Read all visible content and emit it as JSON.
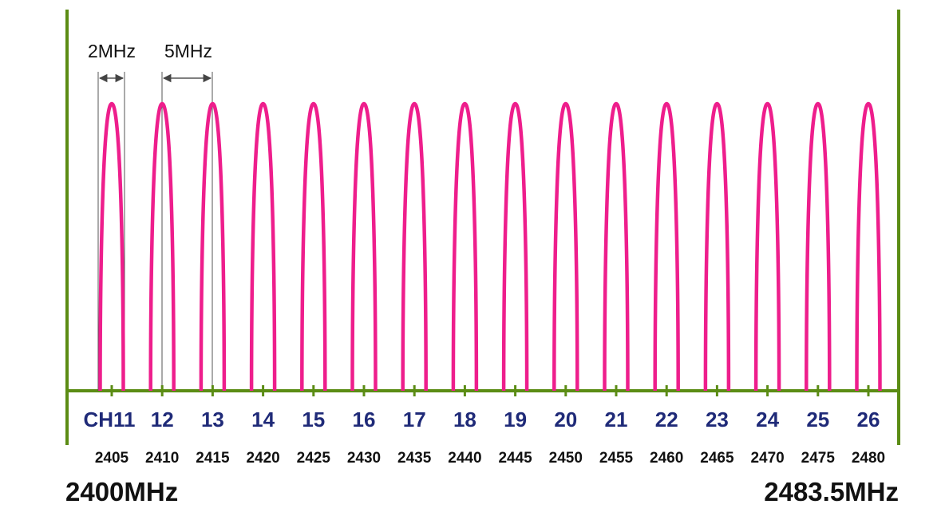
{
  "band": {
    "start_label": "2400MHz",
    "end_label": "2483.5MHz",
    "start_mhz": 2400,
    "end_mhz": 2483.5
  },
  "annotations": {
    "bandwidth_label": "2MHz",
    "spacing_label": "5MHz"
  },
  "channels": [
    {
      "label": "CH11",
      "freq": "2405"
    },
    {
      "label": "12",
      "freq": "2410"
    },
    {
      "label": "13",
      "freq": "2415"
    },
    {
      "label": "14",
      "freq": "2420"
    },
    {
      "label": "15",
      "freq": "2425"
    },
    {
      "label": "16",
      "freq": "2430"
    },
    {
      "label": "17",
      "freq": "2435"
    },
    {
      "label": "18",
      "freq": "2440"
    },
    {
      "label": "19",
      "freq": "2445"
    },
    {
      "label": "20",
      "freq": "2450"
    },
    {
      "label": "21",
      "freq": "2455"
    },
    {
      "label": "22",
      "freq": "2460"
    },
    {
      "label": "23",
      "freq": "2465"
    },
    {
      "label": "24",
      "freq": "2470"
    },
    {
      "label": "25",
      "freq": "2475"
    },
    {
      "label": "26",
      "freq": "2480"
    }
  ],
  "colors": {
    "axis": "#5b8c14",
    "channel_curve": "#ee1e8c",
    "channel_label": "#1f2a78",
    "freq_label": "#111111",
    "dimension_line": "#555555"
  }
}
